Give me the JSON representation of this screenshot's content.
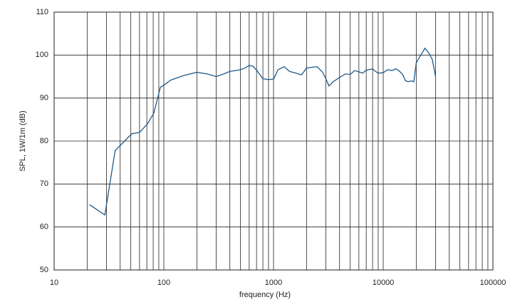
{
  "chart_data": {
    "type": "line",
    "x_label": "frequency (Hz)",
    "y_label": "SPL, 1W/1m (dB)",
    "x_scale": "log",
    "grid": true,
    "xlim": [
      10,
      100000
    ],
    "xticks": [
      10,
      100,
      1000,
      10000,
      100000
    ],
    "ylim": [
      50,
      110
    ],
    "yticks": [
      50,
      60,
      70,
      80,
      90,
      100,
      110
    ],
    "series": [
      {
        "color": "#1f5a8a",
        "x": [
          21,
          29,
          36,
          42,
          51,
          60,
          71,
          81,
          93,
          100,
          116,
          150,
          200,
          250,
          300,
          350,
          400,
          500,
          550,
          600,
          650,
          700,
          800,
          900,
          1000,
          1100,
          1250,
          1400,
          1600,
          1800,
          2000,
          2300,
          2500,
          2800,
          3000,
          3200,
          3500,
          4000,
          4500,
          5000,
          5500,
          6000,
          6500,
          7000,
          8000,
          8500,
          9000,
          10000,
          11000,
          12000,
          13000,
          14000,
          15000,
          16000,
          17000,
          18000,
          19000,
          20000,
          22000,
          24000,
          26000,
          28000,
          30000
        ],
        "values": [
          65.2,
          62.8,
          77.8,
          79.5,
          81.7,
          82,
          84,
          86.5,
          92.5,
          93,
          94.2,
          95.2,
          96,
          95.6,
          95,
          95.6,
          96.2,
          96.6,
          97,
          97.6,
          97.4,
          96.5,
          94.5,
          94.3,
          94.4,
          96.6,
          97.3,
          96.2,
          95.8,
          95.4,
          97,
          97.2,
          97.3,
          96,
          94.5,
          92.8,
          93.8,
          94.8,
          95.6,
          95.5,
          96.4,
          96.1,
          95.8,
          96.5,
          96.8,
          96.2,
          95.8,
          95.9,
          96.6,
          96.4,
          96.8,
          96.3,
          95.5,
          94,
          93.8,
          94,
          93.8,
          98.2,
          100,
          101.6,
          100.5,
          99,
          95
        ]
      }
    ]
  }
}
